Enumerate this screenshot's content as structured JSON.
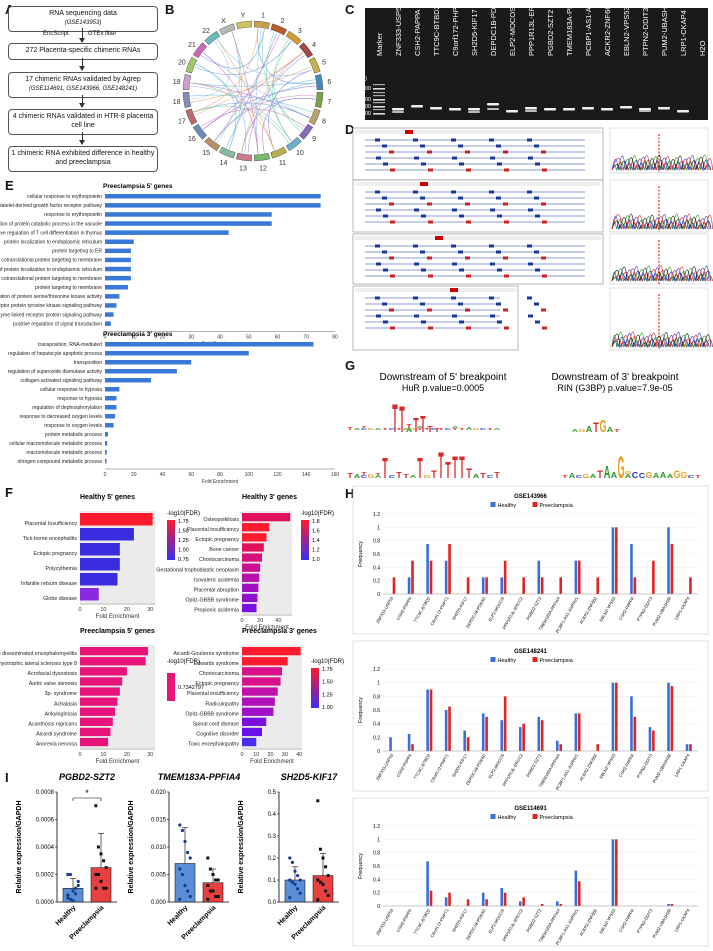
{
  "panels": {
    "A": "A",
    "B": "B",
    "C": "C",
    "D": "D",
    "E": "E",
    "F": "F",
    "G": "G",
    "H": "H",
    "I": "I"
  },
  "flow": {
    "box1": "RNA sequencing data",
    "box1_sub": "(GSE143953)",
    "side_left": "EricScript",
    "side_right": "GTEx filter",
    "box2": "272 Placenta-specific chimeric RNAs",
    "box3": "17 chimeric RNAs validated by Agrep",
    "box3_sub": "(GSE114691, GSE143966, GSE148241)",
    "box4": "4 chimeric RNAs validated in HTR-8 placenta cell line",
    "box5": "1 chimeric RNA exhibited difference in healthy and preeclampsia"
  },
  "circos": {
    "chromosomes": [
      "1",
      "2",
      "3",
      "4",
      "5",
      "6",
      "7",
      "8",
      "9",
      "10",
      "11",
      "12",
      "13",
      "14",
      "15",
      "16",
      "17",
      "18",
      "19",
      "20",
      "21",
      "22",
      "X",
      "Y"
    ]
  },
  "gel": {
    "marker_label": "Marker",
    "size_label": "Size (bp)",
    "sizes": [
      "500",
      "300",
      "200",
      "100"
    ],
    "lanes": [
      "ZNF333-USP53",
      "CSH2-PAPPA",
      "TTC9C-BTBD2",
      "C9orf172-PHPT1",
      "SH2D5-KIF17",
      "DEPDC1B-PDE4D",
      "ELP2-MOCOS",
      "PPP1R13L-ERCC2",
      "PGBD2-SZT2",
      "TMEM183A-PPFIA4",
      "PCBP1-AS1-ASPRV1",
      "ACKR2-ZNF662",
      "EBLN2-VPS53",
      "PTPN2-DDIT3",
      "PUM2-UBASH3B",
      "LRP1-CKAP4",
      "H2O"
    ]
  },
  "enrich5": {
    "title": "Preeclampsia 5' genes",
    "xlabel": "Fold Enrichment",
    "ticks": [
      "0",
      "10",
      "20",
      "30",
      "40",
      "50",
      "60",
      "70",
      "80"
    ],
    "terms": [
      "cellular response to erythropoietin",
      "neg. regulation of platelet-derived growth factor receptor pathway",
      "response to erythropoietin",
      "positive regulation of protein catabolic process in the vacuole",
      "negative regulation of T cell differentiation in thymus",
      "protein localization to endoplasmic reticulum",
      "protein targeting to ER",
      "SRP-dependent cotranslational protein targeting to membrane",
      "establishment of protein localization to endoplasmic reticulum",
      "cotranslational protein targeting to membrane",
      "protein targeting to membrane",
      "positive regulation of protein serine/threonine kinase activity",
      "transmembrane receptor protein tyrosine kinase signaling pathway",
      "enzyme linked receptor protein signaling pathway",
      "positive regulation of signal transduction"
    ],
    "values": [
      75,
      75,
      58,
      58,
      43,
      10,
      9,
      9,
      9,
      9,
      8,
      5,
      4,
      3,
      2
    ],
    "xmax": 80
  },
  "enrich3": {
    "title": "Preeclampsia 3' genes",
    "xlabel": "Fold Enrichment",
    "ticks": [
      "0",
      "20",
      "40",
      "60",
      "80",
      "100",
      "120",
      "140",
      "160"
    ],
    "terms": [
      "transposition, RNA-mediated",
      "regulation of hepatocyte apoptotic process",
      "transposition",
      "regulation of superoxide dismutase activity",
      "collagen-activated signaling pathway",
      "cellular response to hypoxia",
      "response to hypoxia",
      "regulation of dephosphorylation",
      "response to decreased oxygen levels",
      "response to oxygen levels",
      "protein metabolic process",
      "cellular macromolecule metabolic process",
      "macromolecule metabolic process",
      "nitrogen compound metabolic process"
    ],
    "values": [
      145,
      100,
      60,
      50,
      32,
      10,
      8,
      8,
      7,
      6,
      2,
      1.5,
      1.2,
      1
    ],
    "xmax": 160
  },
  "fcharts": [
    {
      "title": "Healthy 5' genes",
      "legend_title": "-log10(FDR)",
      "legend_ticks": [
        "0.75",
        "1.00",
        "1.25",
        "1.50",
        "1.75"
      ],
      "xlabel": "Fold Enrichment",
      "ticks": [
        "0",
        "10",
        "20",
        "30"
      ],
      "xmax": 32,
      "terms": [
        "Placental Insufficiency",
        "Tick-borne encephalitis",
        "Ectopic pregnancy",
        "Polycythemia",
        "Infantile refsum disease",
        "Globe disease"
      ],
      "values": [
        31,
        23,
        17,
        17,
        16,
        8
      ],
      "colors": [
        "#ff1a2e",
        "#3a2de0",
        "#3a2de0",
        "#3a2de0",
        "#3a2de0",
        "#8a2ae0"
      ]
    },
    {
      "title": "Healthy 3' genes",
      "legend_title": "-log10(FDR)",
      "legend_ticks": [
        "1.0",
        "1.2",
        "1.4",
        "1.6",
        "1.8"
      ],
      "xlabel": "Fold Enrichment",
      "ticks": [
        "0",
        "20",
        "40"
      ],
      "xmax": 55,
      "terms": [
        "Osteopoikilosis",
        "Placental insufficiency",
        "Ectopic pregnancy",
        "Bone cancer",
        "Choriocarcinoma",
        "Gestational trophoblastic neoplasm",
        "Isovaleric acidemia",
        "Placental abruption",
        "Opitz-GBBB syndrome",
        "Propionic acidemia"
      ],
      "values": [
        53,
        30,
        27,
        24,
        22,
        20,
        19,
        18,
        17,
        16
      ],
      "colors": [
        "#e0105a",
        "#ff1a2e",
        "#ff1a2e",
        "#e0105a",
        "#d6107a",
        "#c81090",
        "#b810a8",
        "#a010c0",
        "#9010d0",
        "#7a10e0"
      ]
    },
    {
      "title": "Preeclampsia 5' genes",
      "legend_title": "-log10(FDR)",
      "legend_ticks": [
        "0.7342797"
      ],
      "xlabel": "Fold Enrichment",
      "ticks": [
        "0",
        "10",
        "20",
        "30"
      ],
      "xmax": 32,
      "terms": [
        "Acute disseminated encephalomyelitis",
        "Amyotrophic lateral sclerosis type 8",
        "Acrofacial dysostosis",
        "Aortic valve stenosis",
        "3p- syndrome",
        "Achalasia",
        "Ankyloglossia",
        "Acanthosis nigricans",
        "Aicardi syndrome",
        "Anorexia nervosa"
      ],
      "values": [
        29,
        28,
        20,
        18,
        17,
        16,
        15,
        14,
        13,
        12
      ],
      "colors": [
        "#e8147a",
        "#e8147a",
        "#e8147a",
        "#e8147a",
        "#e8147a",
        "#e8147a",
        "#e8147a",
        "#e8147a",
        "#e8147a",
        "#e8147a"
      ]
    },
    {
      "title": "Preeclampsia 3' genes",
      "legend_title": "-log10(FDR)",
      "legend_ticks": [
        "1.00",
        "1.25",
        "1.50",
        "1.75"
      ],
      "xlabel": "Fold Enrichment",
      "ticks": [
        "0",
        "10",
        "20",
        "30",
        "40"
      ],
      "xmax": 42,
      "terms": [
        "Aicardi-Goutieres syndrome",
        "Edwards syndrome",
        "Choriocarcinoma",
        "Ectopic pregnancy",
        "Placental insufficiency",
        "Radiculopathy",
        "Opitz-GBBB syndrome",
        "Spinal cord disease",
        "Cognitive disorder",
        "Toxic encephalopathy"
      ],
      "values": [
        41,
        32,
        28,
        27,
        25,
        23,
        22,
        17,
        14,
        10
      ],
      "colors": [
        "#ff1a2e",
        "#ff1a2e",
        "#d8108a",
        "#d8108a",
        "#c010a8",
        "#b010b8",
        "#a010c8",
        "#7a10e0",
        "#6a10e8",
        "#4a2df0"
      ]
    }
  ],
  "motif": {
    "left_title": "Downstream of 5' breakpoint",
    "left_sub": "HuR p.value=0.0005",
    "right_title": "Downstream of 3' breakpoint",
    "right_sub": "RIN (G3BP) p.value=7.9e-05"
  },
  "freq": {
    "legend": [
      "Healthy",
      "Preeclampsia"
    ],
    "colors": [
      "#3a6fd8",
      "#e02424"
    ],
    "ylabel": "Frequency",
    "yticks": [
      "0",
      "0.2",
      "0.4",
      "0.6",
      "0.8",
      "1",
      "1.2"
    ],
    "genes": [
      "ZNF333-USP53",
      "CSH2-PAPPA",
      "TTC9C-BTBD2",
      "C9orf172-PHPT1",
      "SH2D5-KIF17",
      "DEPDC1B-PDE4D",
      "ELP2-MOCOS",
      "PPP1R13L-ERCC2",
      "PGBD2-SZT2",
      "TMEM183A-PPFIA4",
      "PCBP1-AS1-ASPRV1",
      "ACKR2-ZNF662",
      "EBLN2-VPS53",
      "CSH2-PAPPA",
      "PTPN2-DDIT3",
      "PUM2-UBASH3B",
      "LRP1-CKAP4"
    ],
    "charts": [
      {
        "title": "GSE143966",
        "healthy": [
          0,
          0.25,
          0.75,
          0.5,
          0,
          0.25,
          0.25,
          0,
          0.5,
          0,
          0.5,
          0,
          1,
          0.75,
          0,
          1,
          0
        ],
        "pre": [
          0.25,
          0.5,
          0.5,
          0.75,
          0.25,
          0.25,
          0.5,
          0.25,
          0.25,
          0.25,
          0.5,
          0.25,
          1,
          0.25,
          0.5,
          0.75,
          0.25
        ]
      },
      {
        "title": "GSE148241",
        "healthy": [
          0.2,
          0.25,
          0.9,
          0.6,
          0.3,
          0.55,
          0.45,
          0.35,
          0.5,
          0.15,
          0.55,
          0,
          1,
          0.8,
          0.35,
          1,
          0.1
        ],
        "pre": [
          0,
          0.1,
          0.9,
          0.65,
          0.2,
          0.5,
          0.8,
          0.4,
          0.45,
          0.1,
          0.55,
          0.1,
          1,
          0.5,
          0.3,
          0.95,
          0.1
        ]
      },
      {
        "title": "GSE114691",
        "healthy": [
          0,
          0,
          0.67,
          0.13,
          0,
          0.2,
          0.27,
          0.07,
          0,
          0.07,
          0.53,
          0,
          1,
          0,
          0,
          0.03,
          0
        ],
        "pre": [
          0,
          0,
          0.23,
          0.2,
          0.1,
          0.1,
          0.2,
          0.13,
          0.03,
          0.03,
          0.37,
          0,
          1,
          0,
          0,
          0.03,
          0
        ]
      }
    ]
  },
  "qpcr": {
    "ylabel": "Relative expression/GAPDH",
    "groups": [
      "Healthy",
      "Preeclampsia"
    ],
    "colors": [
      "#5b8ed8",
      "#e84040"
    ],
    "plots": [
      {
        "title": "PGBD2-SZT2",
        "yticks": [
          "0.0000",
          "0.0002",
          "0.0004",
          "0.0006",
          "0.0008"
        ],
        "ymax": 0.0008,
        "means": [
          0.0001,
          0.00025
        ],
        "sd": [
          7e-05,
          0.00025
        ],
        "sig": "*",
        "points_h": [
          5e-05,
          2e-05,
          8e-05,
          0.0001,
          0.00012,
          3e-05,
          0.0002,
          1e-05,
          6e-05,
          0.00015,
          0.0002
        ],
        "points_p": [
          0.0007,
          0.0004,
          0.00035,
          0.0003,
          0.00025,
          0.0002,
          0.0002,
          0.00015,
          0.0001,
          0.0001,
          0.0001
        ]
      },
      {
        "title": "TMEM183A-PPFIA4",
        "yticks": [
          "0.000",
          "0.005",
          "0.010",
          "0.015",
          "0.020"
        ],
        "ymax": 0.02,
        "means": [
          0.007,
          0.0035
        ],
        "sd": [
          0.0065,
          0.0025
        ],
        "sig": "",
        "points_h": [
          0.014,
          0.013,
          0.011,
          0.009,
          0.008,
          0.006,
          0.005,
          0.003,
          0.002,
          0.001,
          0.0005
        ],
        "points_p": [
          0.008,
          0.006,
          0.005,
          0.004,
          0.004,
          0.003,
          0.002,
          0.002,
          0.001,
          0.001,
          0.0005
        ]
      },
      {
        "title": "SH2D5-KIF17",
        "yticks": [
          "0.0",
          "0.1",
          "0.2",
          "0.3",
          "0.4",
          "0.5"
        ],
        "ymax": 0.5,
        "means": [
          0.1,
          0.12
        ],
        "sd": [
          0.06,
          0.1
        ],
        "sig": "",
        "points_h": [
          0.2,
          0.18,
          0.14,
          0.12,
          0.1,
          0.1,
          0.09,
          0.08,
          0.06,
          0.04,
          0.02
        ],
        "points_p": [
          0.46,
          0.24,
          0.2,
          0.16,
          0.12,
          0.1,
          0.09,
          0.08,
          0.05,
          0.03,
          0.01
        ]
      }
    ]
  }
}
